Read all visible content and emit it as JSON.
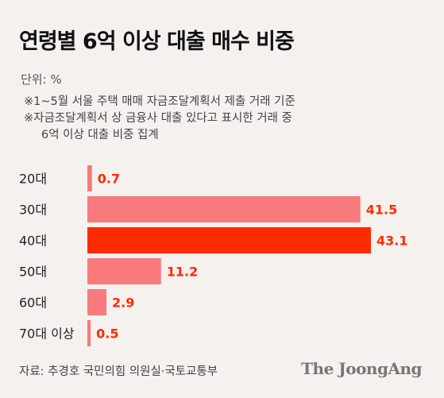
{
  "title": "연령별 6억 이상 대출 매수 비중",
  "unit": "단위: %",
  "notes": [
    "※1~5월 서울 주택 매매 자금조달계획서 제출 거래 기준",
    "※자금조달계획서 상 금융사 대출 있다고 표시한 거래 중",
    "6억 이상 대출 비중 집계"
  ],
  "source": "자료: 추경호 국민의힘 의원실·국토교통부",
  "brand": "The JoongAng",
  "colors": {
    "bar": "#f97a7c",
    "highlight": "#ff2a00",
    "value_text": "#ff2a00",
    "background": "#f5f1ee"
  },
  "chart_data": {
    "type": "bar",
    "orientation": "horizontal",
    "categories": [
      "20대",
      "30대",
      "40대",
      "50대",
      "60대",
      "70대 이상"
    ],
    "values": [
      0.7,
      41.5,
      43.1,
      11.2,
      2.9,
      0.5
    ],
    "value_labels": [
      "0.7",
      "41.5",
      "43.1",
      "11.2",
      "2.9",
      "0.5"
    ],
    "highlight_index": 2,
    "xlim": [
      0,
      43.1
    ]
  }
}
